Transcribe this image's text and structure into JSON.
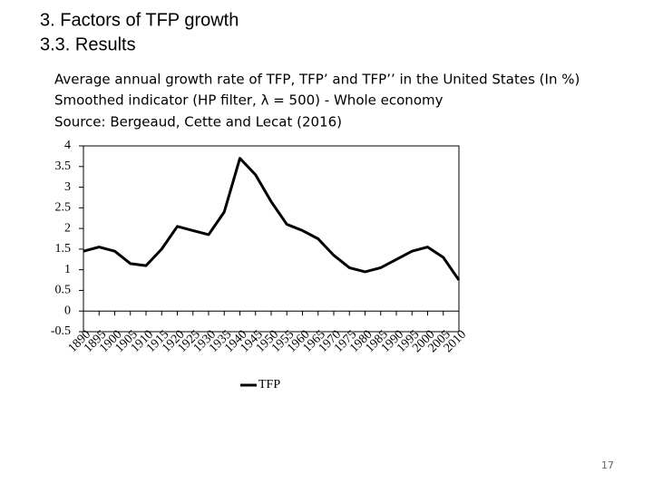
{
  "header": {
    "title": "3.    Factors of TFP growth",
    "subtitle": "3.3. Results"
  },
  "chart_data": {
    "type": "line",
    "title": "Average annual growth rate of TFP, TFP’ and TFP’’ in the United States (In %)",
    "subtitle": "Smoothed indicator (HP filter, λ = 500) -  Whole economy",
    "source": "Source: Bergeaud, Cette and Lecat (2016)",
    "x": [
      1890,
      1895,
      1900,
      1905,
      1910,
      1915,
      1920,
      1925,
      1930,
      1935,
      1940,
      1945,
      1950,
      1955,
      1960,
      1965,
      1970,
      1975,
      1980,
      1985,
      1990,
      1995,
      2000,
      2005,
      2010
    ],
    "series": [
      {
        "name": "TFP",
        "color": "#000000",
        "values": [
          1.45,
          1.55,
          1.45,
          1.15,
          1.1,
          1.5,
          2.05,
          1.95,
          1.85,
          2.4,
          3.7,
          3.3,
          2.65,
          2.1,
          1.95,
          1.75,
          1.35,
          1.05,
          0.95,
          1.05,
          1.25,
          1.45,
          1.55,
          1.3,
          0.75
        ]
      }
    ],
    "xlim": [
      1890,
      2010
    ],
    "xticks": [
      1890,
      1895,
      1900,
      1905,
      1910,
      1915,
      1920,
      1925,
      1930,
      1935,
      1940,
      1945,
      1950,
      1955,
      1960,
      1965,
      1970,
      1975,
      1980,
      1985,
      1990,
      1995,
      2000,
      2005,
      2010
    ],
    "ylim": [
      -0.5,
      4
    ],
    "yticks": [
      -0.5,
      0,
      0.5,
      1,
      1.5,
      2,
      2.5,
      3,
      3.5,
      4
    ],
    "legend": "bottom"
  },
  "page_number": "17"
}
